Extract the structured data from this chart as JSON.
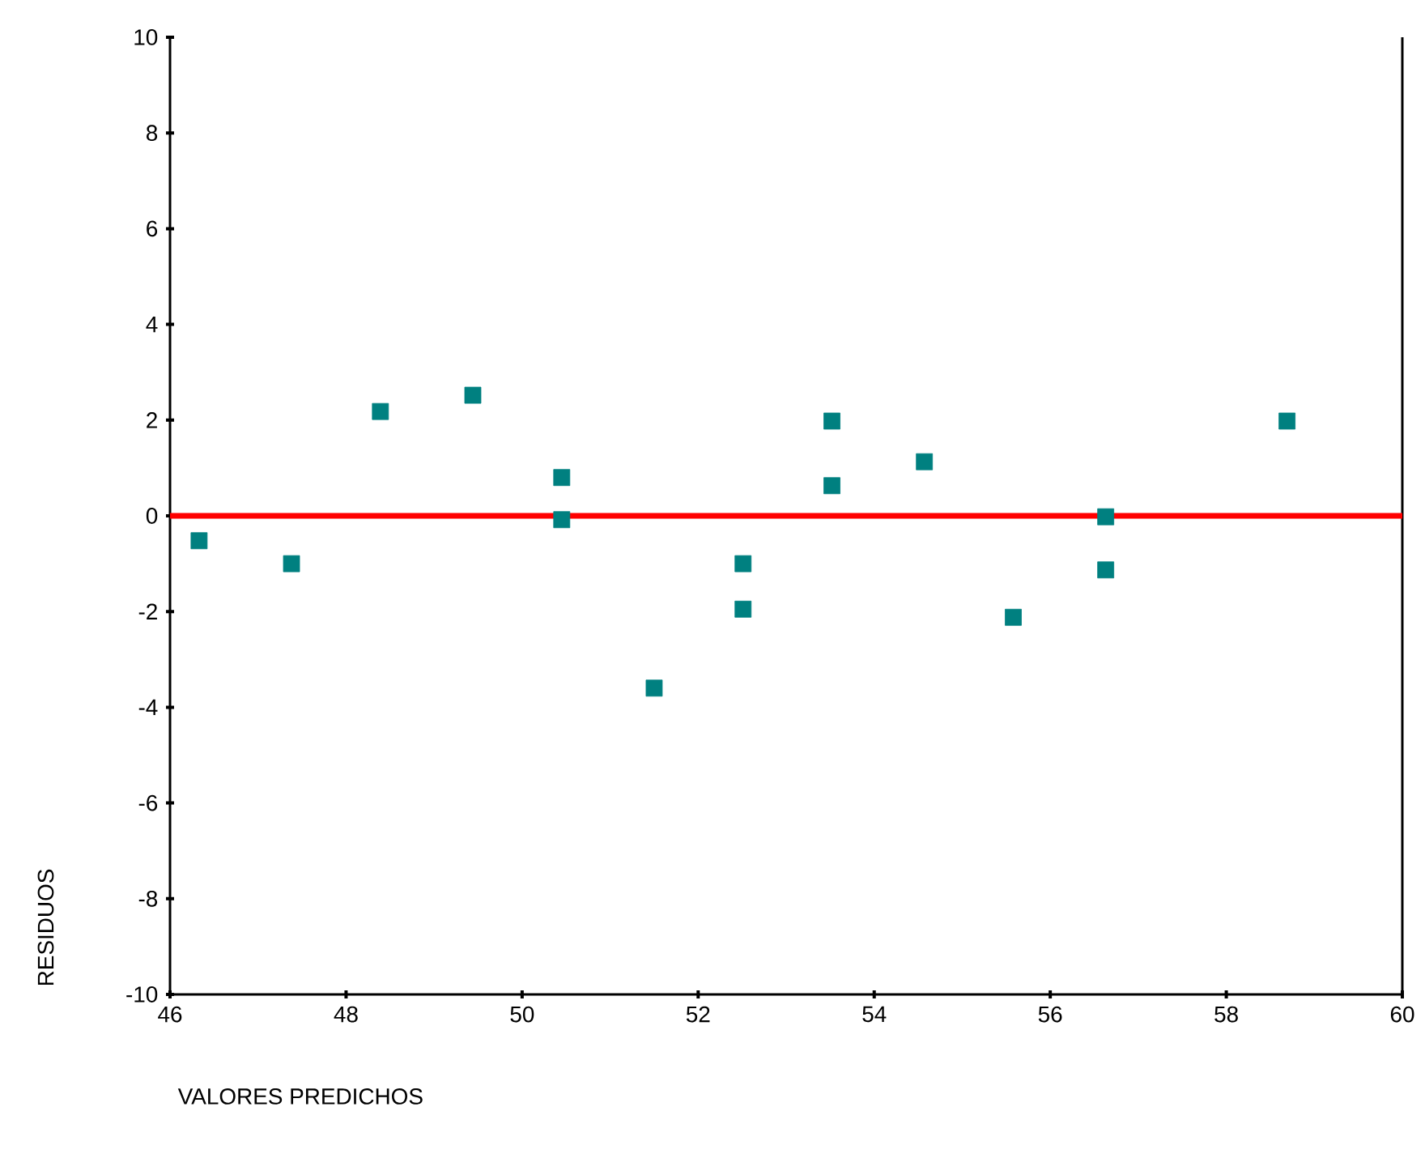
{
  "chart_data": {
    "type": "scatter",
    "xlabel": "VALORES PREDICHOS",
    "ylabel": "RESIDUOS",
    "x": [
      46.33,
      47.38,
      48.39,
      49.44,
      50.45,
      50.45,
      51.5,
      52.51,
      52.51,
      53.52,
      53.52,
      54.57,
      55.58,
      56.63,
      56.63,
      58.69
    ],
    "series": [
      {
        "color": "#008080",
        "values": [
          -0.52,
          -1.0,
          2.18,
          2.52,
          0.8,
          -0.08,
          -3.6,
          -1.0,
          -1.95,
          1.98,
          0.63,
          1.13,
          -2.12,
          -0.02,
          -1.13,
          1.98
        ]
      }
    ],
    "xlim": [
      46,
      60
    ],
    "ylim": [
      -10,
      10
    ],
    "xticks": [
      46,
      48,
      50,
      52,
      54,
      56,
      58,
      60
    ],
    "yticks": [
      -10,
      -8,
      -6,
      -4,
      -2,
      0,
      2,
      4,
      6,
      8,
      10
    ],
    "ref_lines": [
      {
        "axis": "y",
        "value": 0,
        "color": "#ff0000"
      }
    ],
    "marker": "square"
  }
}
